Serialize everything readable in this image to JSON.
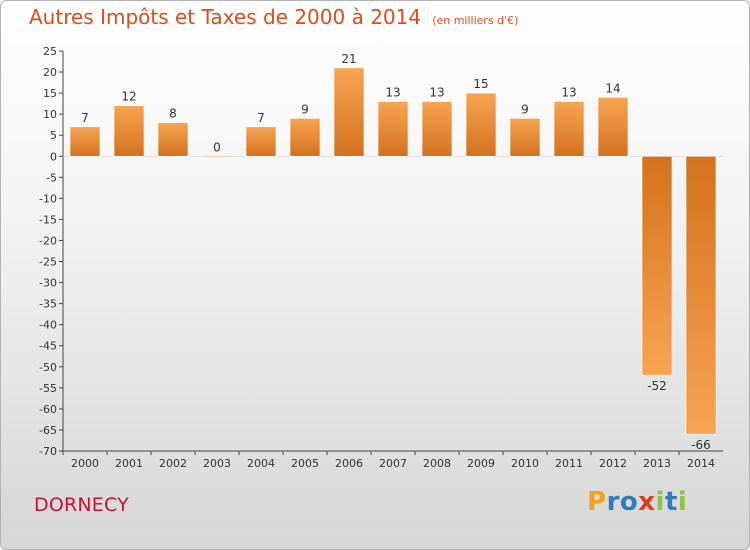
{
  "header": {
    "title": "Autres Impôts et Taxes de 2000 à 2014",
    "subtitle": "(en milliers d'€)"
  },
  "footer": {
    "town": "DORNECY",
    "brand": "Proxiti",
    "brand_colors": [
      "#f5a31a",
      "#2f7cc0",
      "#2f7cc0",
      "#e03a1e",
      "#8cc63f",
      "#2f7cc0",
      "#8cc63f"
    ]
  },
  "colors": {
    "bar_light": "#f7a452",
    "bar_dark": "#d4711d",
    "title": "#d4501f",
    "town": "#c2133b"
  },
  "chart_data": {
    "type": "bar",
    "categories": [
      "2000",
      "2001",
      "2002",
      "2003",
      "2004",
      "2005",
      "2006",
      "2007",
      "2008",
      "2009",
      "2010",
      "2011",
      "2012",
      "2013",
      "2014"
    ],
    "values": [
      7,
      12,
      8,
      0,
      7,
      9,
      21,
      13,
      13,
      15,
      9,
      13,
      14,
      -52,
      -66
    ],
    "data_labels": [
      "7",
      "12",
      "8",
      "0",
      "7",
      "9",
      "21",
      "13",
      "13",
      "15",
      "9",
      "13",
      "14",
      "-52",
      "-66"
    ],
    "ylim": [
      -70,
      25
    ],
    "ytick_step": 5,
    "grid": false,
    "legend": "none"
  }
}
